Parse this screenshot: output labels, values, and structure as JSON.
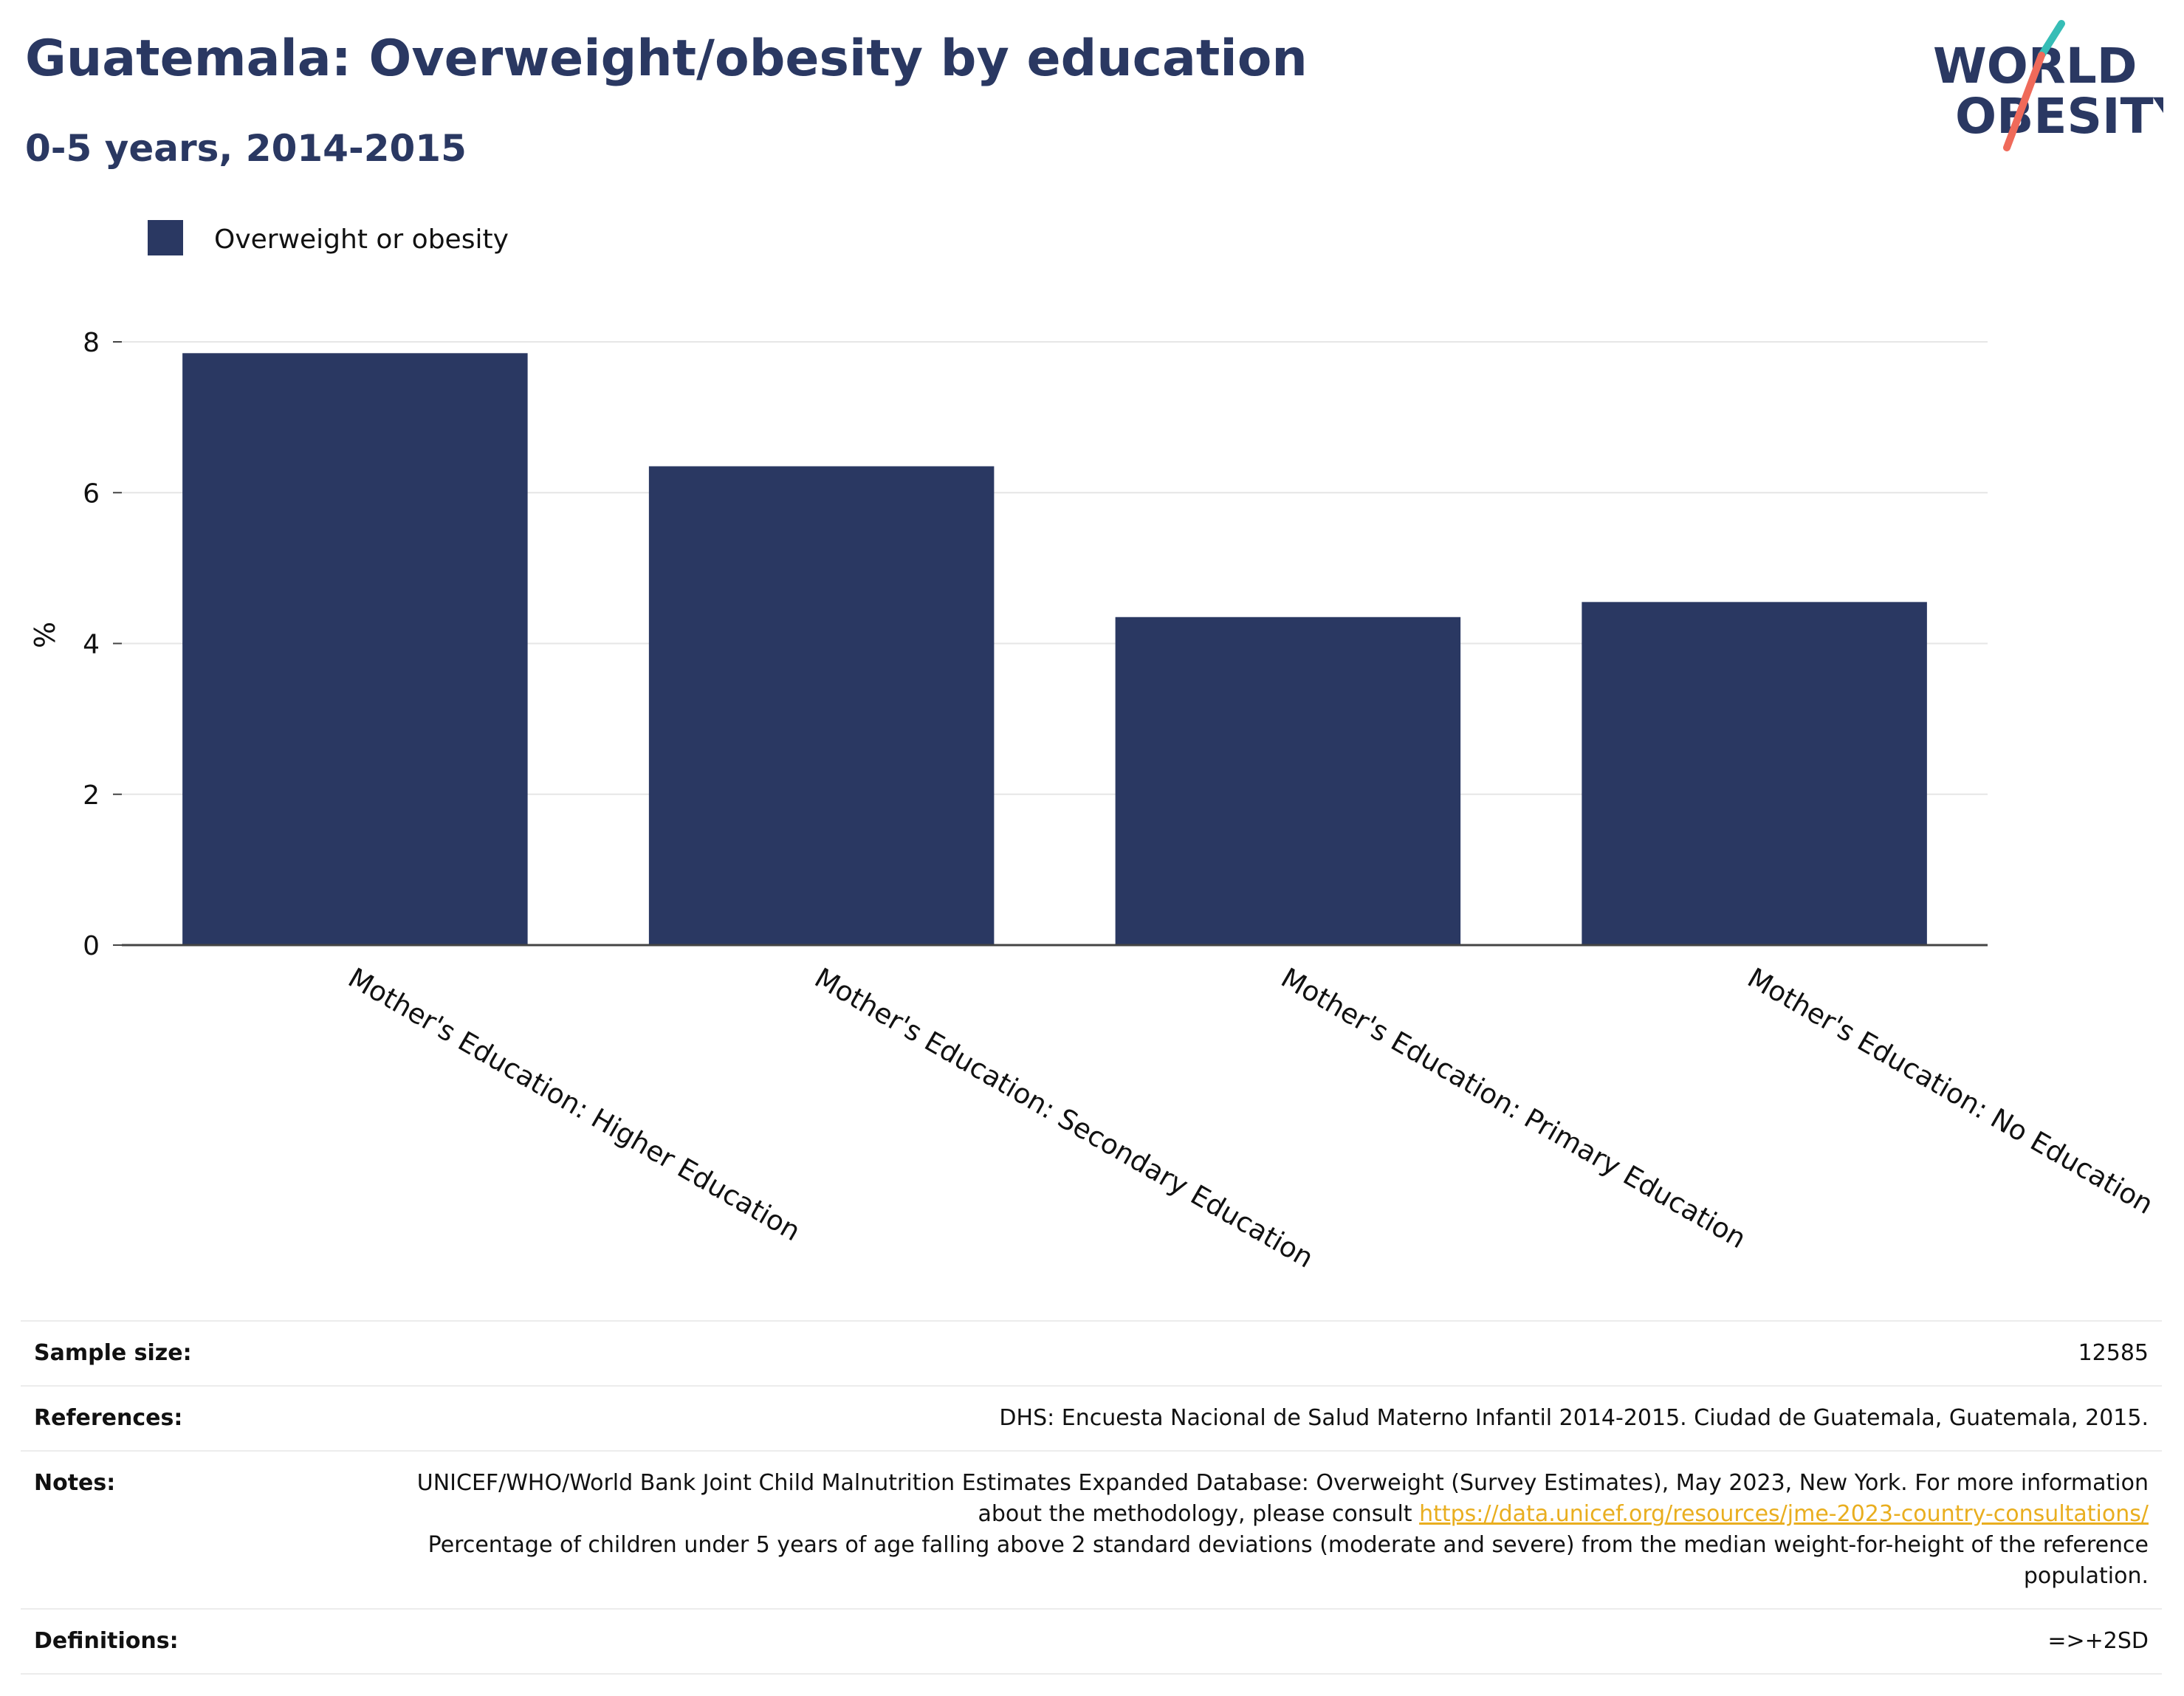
{
  "header": {
    "title": "Guatemala: Overweight/obesity by education",
    "subtitle": "0-5 years, 2014-2015"
  },
  "logo": {
    "line1": "WORLD",
    "line2": "OBESITY",
    "text_color": "#2a3862",
    "slash_top_color": "#36bdb6",
    "slash_bottom_color": "#ef6a5a"
  },
  "chart_data": {
    "type": "bar",
    "categories": [
      "Mother's Education: Higher Education",
      "Mother's Education: Secondary Education",
      "Mother's Education: Primary Education",
      "Mother's Education: No Education"
    ],
    "series": [
      {
        "name": "Overweight or obesity",
        "values": [
          7.85,
          6.35,
          4.35,
          4.55
        ],
        "color": "#2a3862"
      }
    ],
    "ylabel": "%",
    "ylim": [
      0,
      8
    ],
    "yticks": [
      "0",
      "2",
      "4",
      "6",
      "8"
    ],
    "grid": true,
    "legend_position": "top-left"
  },
  "info": {
    "sample_size": {
      "label": "Sample size:",
      "value": "12585"
    },
    "references": {
      "label": "References:",
      "value": "DHS: Encuesta Nacional de Salud Materno Infantil 2014-2015. Ciudad de Guatemala, Guatemala, 2015."
    },
    "notes": {
      "label": "Notes:",
      "text1": "UNICEF/WHO/World Bank Joint Child Malnutrition Estimates Expanded Database: Overweight (Survey Estimates), May 2023, New York. For more information about the methodology, please consult ",
      "link": "https://data.unicef.org/resources/jme-2023-country-consultations/",
      "text2": "Percentage of children under 5 years of age falling above 2 standard deviations (moderate and severe) from the median weight-for-height of the reference population."
    },
    "definitions": {
      "label": "Definitions:",
      "value": "=>+2SD"
    }
  }
}
